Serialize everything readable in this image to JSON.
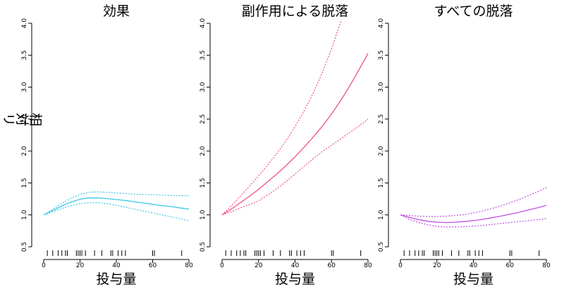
{
  "ylabel": "相対リスク",
  "chart_data": [
    {
      "type": "line",
      "title": "効果",
      "xlabel": "投与量",
      "ylabel": "相対リスク",
      "xlim": [
        0,
        80
      ],
      "ylim": [
        0.5,
        4.0
      ],
      "xticks": [
        "0",
        "20",
        "40",
        "60",
        "80"
      ],
      "yticks": [
        "0.5",
        "1.0",
        "1.5",
        "2.0",
        "2.5",
        "3.0",
        "3.5",
        "4.0"
      ],
      "color": "#3cc8e6",
      "x": [
        0,
        5,
        10,
        15,
        20,
        25,
        30,
        35,
        40,
        45,
        50,
        55,
        60,
        65,
        70,
        75,
        80
      ],
      "series": [
        {
          "values": [
            1.0,
            1.07,
            1.14,
            1.2,
            1.245,
            1.265,
            1.265,
            1.255,
            1.24,
            1.225,
            1.205,
            1.185,
            1.165,
            1.145,
            1.13,
            1.11,
            1.09
          ],
          "style": "solid"
        },
        {
          "values": [
            1.0,
            1.09,
            1.18,
            1.26,
            1.32,
            1.355,
            1.36,
            1.355,
            1.345,
            1.335,
            1.325,
            1.32,
            1.315,
            1.31,
            1.305,
            1.3,
            1.3
          ],
          "style": "dotted"
        },
        {
          "values": [
            1.0,
            1.05,
            1.1,
            1.145,
            1.175,
            1.19,
            1.19,
            1.175,
            1.15,
            1.12,
            1.09,
            1.06,
            1.03,
            1.0,
            0.97,
            0.94,
            0.905
          ],
          "style": "dotted"
        }
      ],
      "rug": [
        2,
        5,
        8,
        10,
        12,
        13,
        18,
        19,
        20,
        21,
        23,
        28,
        32,
        37,
        38,
        41,
        43,
        45,
        60,
        61,
        76
      ]
    },
    {
      "type": "line",
      "title": "副作用による脱落",
      "xlabel": "投与量",
      "ylabel": "",
      "xlim": [
        0,
        80
      ],
      "ylim": [
        0.5,
        4.0
      ],
      "xticks": [
        "0",
        "20",
        "40",
        "60",
        "80"
      ],
      "yticks": [
        "0.5",
        "1.0",
        "1.5",
        "2.0",
        "2.5",
        "3.0",
        "3.5",
        "4.0"
      ],
      "color": "#f0508c",
      "x": [
        0,
        5,
        10,
        15,
        20,
        25,
        30,
        35,
        40,
        45,
        50,
        55,
        60,
        65,
        70,
        75,
        80
      ],
      "series": [
        {
          "values": [
            1.0,
            1.09,
            1.19,
            1.29,
            1.4,
            1.52,
            1.64,
            1.77,
            1.91,
            2.06,
            2.22,
            2.39,
            2.58,
            2.79,
            3.02,
            3.27,
            3.53
          ],
          "style": "solid"
        },
        {
          "values": [
            1.0,
            1.14,
            1.29,
            1.45,
            1.61,
            1.78,
            1.96,
            2.16,
            2.38,
            2.63,
            2.91,
            3.23,
            3.6,
            4.02,
            4.4,
            null,
            null
          ],
          "style": "dotted"
        },
        {
          "values": [
            1.0,
            1.05,
            1.11,
            1.16,
            1.22,
            1.31,
            1.41,
            1.52,
            1.64,
            1.76,
            1.88,
            1.99,
            2.09,
            2.19,
            2.29,
            2.39,
            2.5
          ],
          "style": "dotted"
        }
      ],
      "rug": [
        2,
        5,
        8,
        10,
        12,
        13,
        18,
        19,
        20,
        21,
        23,
        28,
        32,
        37,
        38,
        41,
        43,
        45,
        60,
        61,
        76
      ]
    },
    {
      "type": "line",
      "title": "すべての脱落",
      "xlabel": "投与量",
      "ylabel": "",
      "xlim": [
        0,
        80
      ],
      "ylim": [
        0.5,
        4.0
      ],
      "xticks": [
        "0",
        "20",
        "40",
        "60",
        "80"
      ],
      "yticks": [
        "0.5",
        "1.0",
        "1.5",
        "2.0",
        "2.5",
        "3.0",
        "3.5",
        "4.0"
      ],
      "color": "#c050e0",
      "x": [
        0,
        5,
        10,
        15,
        20,
        25,
        30,
        35,
        40,
        45,
        50,
        55,
        60,
        65,
        70,
        75,
        80
      ],
      "series": [
        {
          "values": [
            1.0,
            0.96,
            0.925,
            0.9,
            0.885,
            0.88,
            0.885,
            0.895,
            0.91,
            0.93,
            0.955,
            0.98,
            1.01,
            1.04,
            1.075,
            1.11,
            1.15
          ],
          "style": "solid"
        },
        {
          "values": [
            1.0,
            0.99,
            0.98,
            0.975,
            0.975,
            0.98,
            0.99,
            1.005,
            1.03,
            1.06,
            1.1,
            1.14,
            1.19,
            1.24,
            1.3,
            1.36,
            1.43
          ],
          "style": "dotted"
        },
        {
          "values": [
            1.0,
            0.93,
            0.88,
            0.845,
            0.82,
            0.81,
            0.81,
            0.815,
            0.825,
            0.835,
            0.85,
            0.865,
            0.88,
            0.895,
            0.91,
            0.925,
            0.94
          ],
          "style": "dotted"
        }
      ],
      "rug": [
        2,
        5,
        8,
        10,
        12,
        13,
        18,
        19,
        20,
        21,
        23,
        28,
        32,
        37,
        38,
        41,
        43,
        45,
        60,
        61,
        76
      ]
    }
  ]
}
